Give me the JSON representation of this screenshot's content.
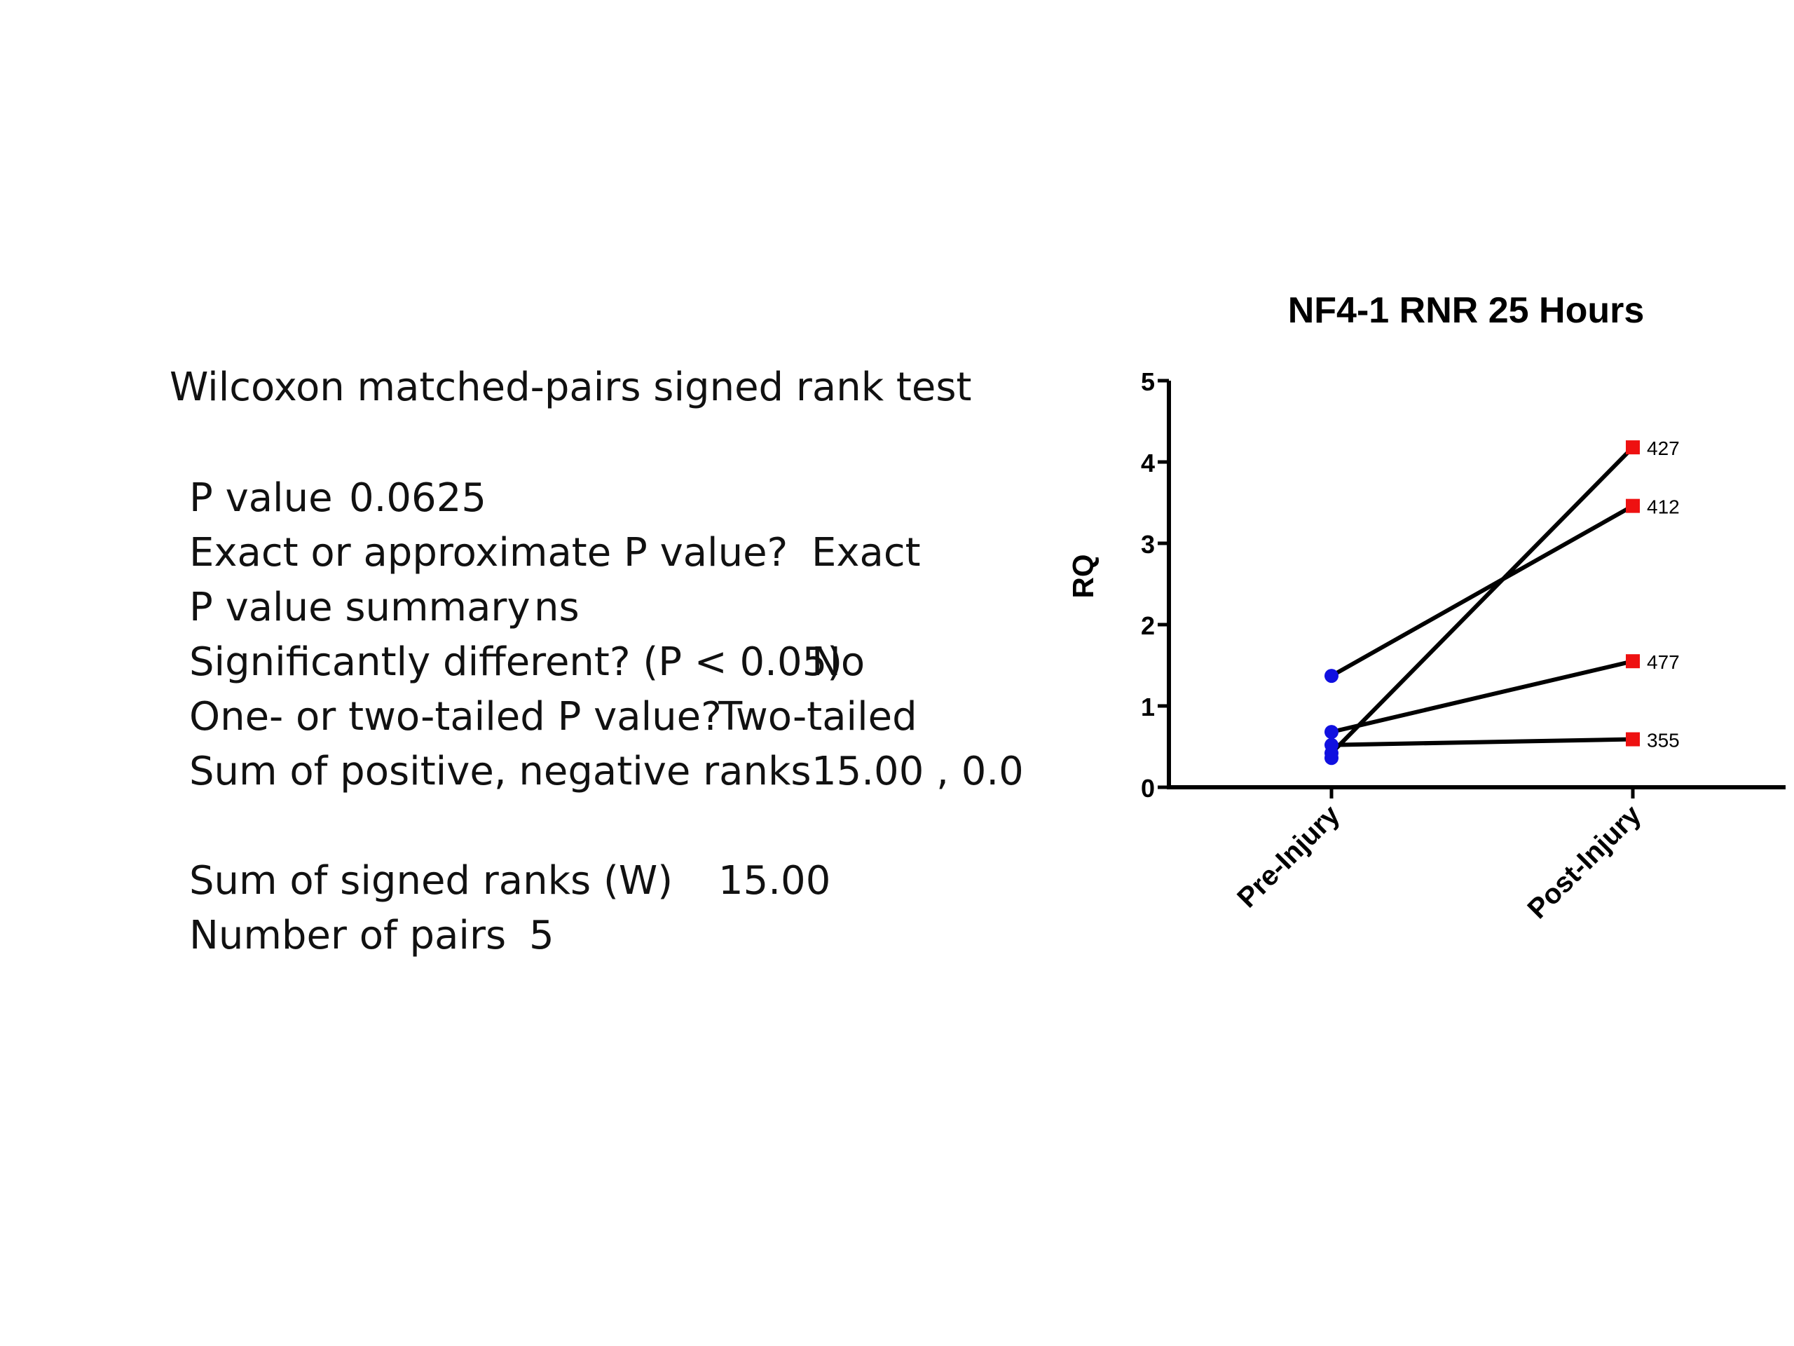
{
  "stats": {
    "title": "Wilcoxon matched-pairs signed rank test",
    "rows": [
      {
        "label": "P value",
        "value": "0.0625"
      },
      {
        "label": "Exact or approximate P value?",
        "value": "Exact"
      },
      {
        "label": "P value summary",
        "value": "ns"
      },
      {
        "label": "Significantly different? (P < 0.05)",
        "value": "No"
      },
      {
        "label": "One- or two-tailed P value?",
        "value": "Two-tailed"
      },
      {
        "label": "Sum of positive, negative ranks",
        "value": "15.00 , 0.0"
      },
      {
        "label": "Sum of signed ranks (W)",
        "value": "15.00"
      },
      {
        "label": "Number of pairs",
        "value": "5"
      }
    ]
  },
  "chart_data": {
    "type": "line",
    "title": "NF4-1 RNR 25 Hours",
    "xlabel": "",
    "ylabel": "RQ",
    "categories": [
      "Pre-Injury",
      "Post-Injury"
    ],
    "ylim": [
      0,
      5
    ],
    "yticks": [
      "0",
      "1",
      "2",
      "3",
      "4",
      "5"
    ],
    "grid": false,
    "legend": "none",
    "colors": {
      "pre_marker": "#1010e0",
      "post_marker": "#ee1111",
      "line": "#000000"
    },
    "series": [
      {
        "name": "427",
        "values": [
          0.42,
          4.18
        ]
      },
      {
        "name": "412",
        "values": [
          1.37,
          3.46
        ]
      },
      {
        "name": "477",
        "values": [
          0.68,
          1.55
        ]
      },
      {
        "name": "355",
        "values": [
          0.52,
          0.59
        ]
      },
      {
        "values": [
          0.36,
          0.36
        ]
      }
    ]
  }
}
